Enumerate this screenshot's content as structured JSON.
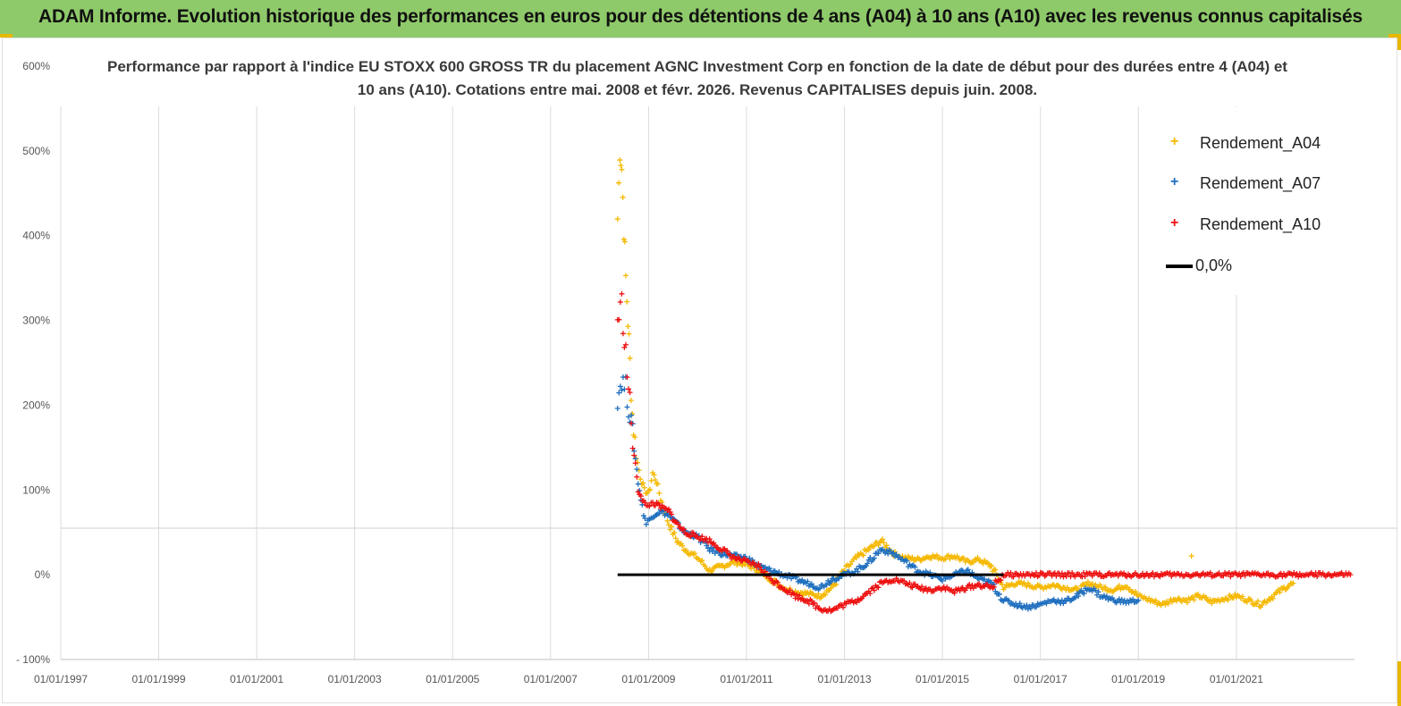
{
  "header": {
    "title": "ADAM Informe. Evolution historique des performances en euros pour des détentions de 4 ans (A04) à 10 ans (A10) avec les revenus connus capitalisés"
  },
  "colors": {
    "header_bg": "#8fca6a",
    "accent_corner": "#e6b800",
    "A04": "#f5b800",
    "A07": "#1f6fbf",
    "A10": "#ee1111",
    "zero_line": "#000000"
  },
  "chart_data": {
    "type": "scatter",
    "title": "Performance par rapport à l'indice EU STOXX 600 GROSS TR  du placement AGNC Investment Corp en fonction de la date de début pour des durées entre 4 (A04) et 10 ans (A10). Cotations entre mai. 2008 et févr. 2026. Revenus CAPITALISES depuis juin. 2008.",
    "xlabel": "",
    "ylabel": "",
    "x_ticks": [
      "01/01/1997",
      "01/01/1999",
      "01/01/2001",
      "01/01/2003",
      "01/01/2005",
      "01/01/2007",
      "01/01/2009",
      "01/01/2011",
      "01/01/2013",
      "01/01/2015",
      "01/01/2017",
      "01/01/2019",
      "01/01/2021"
    ],
    "y_ticks": [
      "600%",
      "500%",
      "400%",
      "300%",
      "200%",
      "100%",
      "0%",
      "- 100%"
    ],
    "ylim": [
      -100,
      600
    ],
    "xlim": [
      "1997-01-01",
      "2023-06-01"
    ],
    "grid": "vertical gridlines at each x tick",
    "legend_position": "top-right",
    "series": [
      {
        "name": "Rendement_A04",
        "marker": "+",
        "points": [
          [
            "2008-05-15",
            420
          ],
          [
            "2008-06-01",
            500
          ],
          [
            "2008-06-15",
            480
          ],
          [
            "2008-07-01",
            410
          ],
          [
            "2008-07-15",
            350
          ],
          [
            "2008-08-01",
            300
          ],
          [
            "2008-08-15",
            250
          ],
          [
            "2008-09-01",
            190
          ],
          [
            "2008-10-01",
            140
          ],
          [
            "2008-11-01",
            115
          ],
          [
            "2008-12-01",
            100
          ],
          [
            "2009-01-01",
            95
          ],
          [
            "2009-02-01",
            120
          ],
          [
            "2009-03-01",
            110
          ],
          [
            "2009-04-01",
            90
          ],
          [
            "2009-06-01",
            60
          ],
          [
            "2009-08-01",
            40
          ],
          [
            "2009-10-01",
            30
          ],
          [
            "2010-01-01",
            20
          ],
          [
            "2010-04-01",
            5
          ],
          [
            "2010-07-01",
            10
          ],
          [
            "2010-10-01",
            15
          ],
          [
            "2011-01-01",
            12
          ],
          [
            "2011-04-01",
            5
          ],
          [
            "2011-07-01",
            -5
          ],
          [
            "2011-10-01",
            -15
          ],
          [
            "2012-01-01",
            -20
          ],
          [
            "2012-04-01",
            -22
          ],
          [
            "2012-07-01",
            -25
          ],
          [
            "2012-10-01",
            -15
          ],
          [
            "2013-01-01",
            5
          ],
          [
            "2013-04-01",
            20
          ],
          [
            "2013-07-01",
            30
          ],
          [
            "2013-10-01",
            40
          ],
          [
            "2014-01-01",
            25
          ],
          [
            "2014-04-01",
            20
          ],
          [
            "2014-07-01",
            18
          ],
          [
            "2014-10-01",
            22
          ],
          [
            "2015-01-01",
            20
          ],
          [
            "2015-04-01",
            22
          ],
          [
            "2015-07-01",
            15
          ],
          [
            "2015-10-01",
            18
          ],
          [
            "2016-01-01",
            10
          ],
          [
            "2016-04-01",
            -15
          ],
          [
            "2016-07-01",
            -10
          ],
          [
            "2016-10-01",
            -12
          ],
          [
            "2017-01-01",
            -15
          ],
          [
            "2017-04-01",
            -12
          ],
          [
            "2017-07-01",
            -15
          ],
          [
            "2017-10-01",
            -18
          ],
          [
            "2018-01-01",
            -10
          ],
          [
            "2018-04-01",
            -15
          ],
          [
            "2018-07-01",
            -18
          ],
          [
            "2018-10-01",
            -12
          ],
          [
            "2019-01-01",
            -25
          ],
          [
            "2019-04-01",
            -30
          ],
          [
            "2019-07-01",
            -35
          ],
          [
            "2019-10-01",
            -28
          ],
          [
            "2020-01-01",
            -30
          ],
          [
            "2020-04-01",
            -25
          ],
          [
            "2020-07-01",
            -32
          ],
          [
            "2020-10-01",
            -28
          ],
          [
            "2021-01-01",
            -25
          ],
          [
            "2021-04-01",
            -30
          ],
          [
            "2021-07-01",
            -35
          ],
          [
            "2021-10-01",
            -25
          ],
          [
            "2022-01-01",
            -15
          ],
          [
            "2022-03-01",
            -10
          ],
          [
            "2020-02-01",
            22
          ]
        ]
      },
      {
        "name": "Rendement_A07",
        "marker": "+",
        "points": [
          [
            "2008-05-15",
            210
          ],
          [
            "2008-06-15",
            230
          ],
          [
            "2008-07-15",
            220
          ],
          [
            "2008-08-15",
            190
          ],
          [
            "2008-09-15",
            150
          ],
          [
            "2008-10-15",
            110
          ],
          [
            "2008-11-15",
            80
          ],
          [
            "2008-12-15",
            60
          ],
          [
            "2009-02-01",
            70
          ],
          [
            "2009-04-01",
            75
          ],
          [
            "2009-06-01",
            70
          ],
          [
            "2009-08-01",
            60
          ],
          [
            "2009-10-01",
            50
          ],
          [
            "2010-01-01",
            45
          ],
          [
            "2010-04-01",
            30
          ],
          [
            "2010-07-01",
            25
          ],
          [
            "2010-10-01",
            22
          ],
          [
            "2011-01-01",
            20
          ],
          [
            "2011-04-01",
            10
          ],
          [
            "2011-07-01",
            5
          ],
          [
            "2011-10-01",
            0
          ],
          [
            "2012-01-01",
            -5
          ],
          [
            "2012-04-01",
            -10
          ],
          [
            "2012-07-01",
            -15
          ],
          [
            "2012-10-01",
            -5
          ],
          [
            "2013-01-01",
            0
          ],
          [
            "2013-04-01",
            5
          ],
          [
            "2013-07-01",
            15
          ],
          [
            "2013-10-01",
            30
          ],
          [
            "2014-01-01",
            25
          ],
          [
            "2014-04-01",
            15
          ],
          [
            "2014-07-01",
            5
          ],
          [
            "2014-10-01",
            0
          ],
          [
            "2015-01-01",
            -5
          ],
          [
            "2015-04-01",
            0
          ],
          [
            "2015-07-01",
            5
          ],
          [
            "2015-10-01",
            -5
          ],
          [
            "2016-01-01",
            -10
          ],
          [
            "2016-04-01",
            -30
          ],
          [
            "2016-07-01",
            -35
          ],
          [
            "2016-10-01",
            -38
          ],
          [
            "2017-01-01",
            -35
          ],
          [
            "2017-04-01",
            -30
          ],
          [
            "2017-07-01",
            -32
          ],
          [
            "2017-10-01",
            -25
          ],
          [
            "2018-01-01",
            -15
          ],
          [
            "2018-04-01",
            -25
          ],
          [
            "2018-07-01",
            -30
          ],
          [
            "2018-10-01",
            -32
          ],
          [
            "2019-01-01",
            -30
          ]
        ]
      },
      {
        "name": "Rendement_A10",
        "marker": "+",
        "points": [
          [
            "2008-05-15",
            300
          ],
          [
            "2008-06-15",
            320
          ],
          [
            "2008-07-15",
            260
          ],
          [
            "2008-08-15",
            200
          ],
          [
            "2008-09-15",
            140
          ],
          [
            "2008-10-15",
            100
          ],
          [
            "2008-11-15",
            90
          ],
          [
            "2008-12-15",
            80
          ],
          [
            "2009-02-01",
            85
          ],
          [
            "2009-04-01",
            80
          ],
          [
            "2009-06-01",
            75
          ],
          [
            "2009-08-01",
            60
          ],
          [
            "2009-10-01",
            50
          ],
          [
            "2010-01-01",
            45
          ],
          [
            "2010-04-01",
            40
          ],
          [
            "2010-07-01",
            30
          ],
          [
            "2010-10-01",
            20
          ],
          [
            "2011-01-01",
            15
          ],
          [
            "2011-04-01",
            10
          ],
          [
            "2011-07-01",
            -5
          ],
          [
            "2011-10-01",
            -15
          ],
          [
            "2012-01-01",
            -25
          ],
          [
            "2012-04-01",
            -30
          ],
          [
            "2012-07-01",
            -40
          ],
          [
            "2012-10-01",
            -42
          ],
          [
            "2013-01-01",
            -35
          ],
          [
            "2013-04-01",
            -30
          ],
          [
            "2013-07-01",
            -20
          ],
          [
            "2013-10-01",
            -10
          ],
          [
            "2014-01-01",
            -5
          ],
          [
            "2014-04-01",
            -10
          ],
          [
            "2014-07-01",
            -15
          ],
          [
            "2014-10-01",
            -18
          ],
          [
            "2015-01-01",
            -15
          ],
          [
            "2015-04-01",
            -20
          ],
          [
            "2015-07-01",
            -15
          ],
          [
            "2015-10-01",
            -12
          ],
          [
            "2016-01-01",
            -15
          ],
          [
            "2016-04-01",
            0
          ],
          [
            "2017-01-01",
            0
          ],
          [
            "2018-01-01",
            0
          ],
          [
            "2019-01-01",
            0
          ],
          [
            "2020-01-01",
            0
          ],
          [
            "2021-01-01",
            0
          ],
          [
            "2022-01-01",
            0
          ],
          [
            "2023-05-01",
            0
          ]
        ]
      },
      {
        "name": "0,0%",
        "type": "line",
        "points": [
          [
            "2008-05-15",
            0
          ],
          [
            "2016-04-01",
            0
          ]
        ]
      }
    ]
  }
}
